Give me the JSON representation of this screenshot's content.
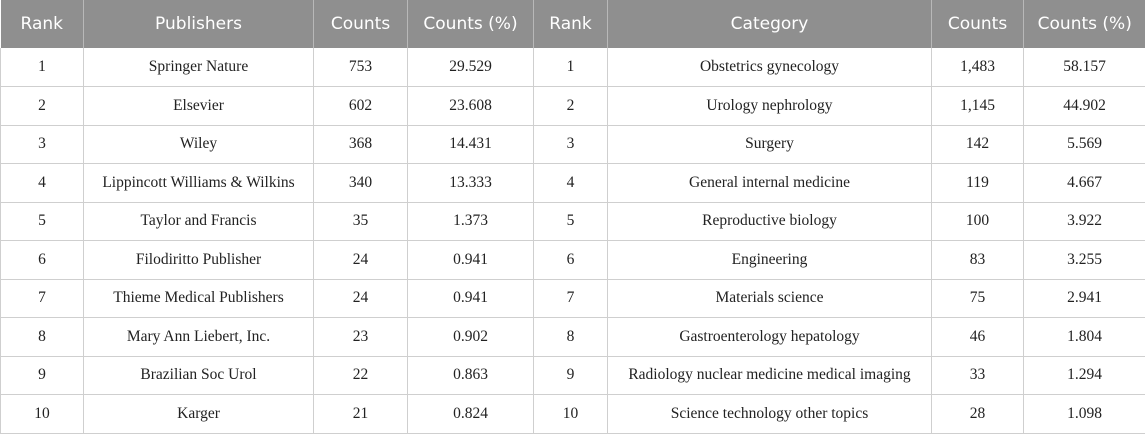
{
  "headers": [
    "Rank",
    "Publishers",
    "Counts",
    "Counts (%)",
    "Rank",
    "Category",
    "Counts",
    "Counts (%)"
  ],
  "rows": [
    {
      "rank": "1",
      "publisher": "Springer Nature",
      "pub_count": "753",
      "pub_pct": "29.529",
      "cat_rank": "1",
      "category": "Obstetrics gynecology",
      "cat_count": "1,483",
      "cat_pct": "58.157"
    },
    {
      "rank": "2",
      "publisher": "Elsevier",
      "pub_count": "602",
      "pub_pct": "23.608",
      "cat_rank": "2",
      "category": "Urology nephrology",
      "cat_count": "1,145",
      "cat_pct": "44.902"
    },
    {
      "rank": "3",
      "publisher": "Wiley",
      "pub_count": "368",
      "pub_pct": "14.431",
      "cat_rank": "3",
      "category": "Surgery",
      "cat_count": "142",
      "cat_pct": "5.569"
    },
    {
      "rank": "4",
      "publisher": "Lippincott Williams & Wilkins",
      "pub_count": "340",
      "pub_pct": "13.333",
      "cat_rank": "4",
      "category": "General internal medicine",
      "cat_count": "119",
      "cat_pct": "4.667"
    },
    {
      "rank": "5",
      "publisher": "Taylor and Francis",
      "pub_count": "35",
      "pub_pct": "1.373",
      "cat_rank": "5",
      "category": "Reproductive biology",
      "cat_count": "100",
      "cat_pct": "3.922"
    },
    {
      "rank": "6",
      "publisher": "Filodiritto Publisher",
      "pub_count": "24",
      "pub_pct": "0.941",
      "cat_rank": "6",
      "category": "Engineering",
      "cat_count": "83",
      "cat_pct": "3.255"
    },
    {
      "rank": "7",
      "publisher": "Thieme Medical Publishers",
      "pub_count": "24",
      "pub_pct": "0.941",
      "cat_rank": "7",
      "category": "Materials science",
      "cat_count": "75",
      "cat_pct": "2.941"
    },
    {
      "rank": "8",
      "publisher": "Mary Ann Liebert, Inc.",
      "pub_count": "23",
      "pub_pct": "0.902",
      "cat_rank": "8",
      "category": "Gastroenterology hepatology",
      "cat_count": "46",
      "cat_pct": "1.804"
    },
    {
      "rank": "9",
      "publisher": "Brazilian Soc Urol",
      "pub_count": "22",
      "pub_pct": "0.863",
      "cat_rank": "9",
      "category": "Radiology nuclear medicine medical imaging",
      "cat_count": "33",
      "cat_pct": "1.294"
    },
    {
      "rank": "10",
      "publisher": "Karger",
      "pub_count": "21",
      "pub_pct": "0.824",
      "cat_rank": "10",
      "category": "Science technology other topics",
      "cat_count": "28",
      "cat_pct": "1.098"
    }
  ],
  "colors": {
    "header_bg": "#8f8f8f",
    "header_text": "#ffffff",
    "grid_line": "#cfcfcf"
  }
}
